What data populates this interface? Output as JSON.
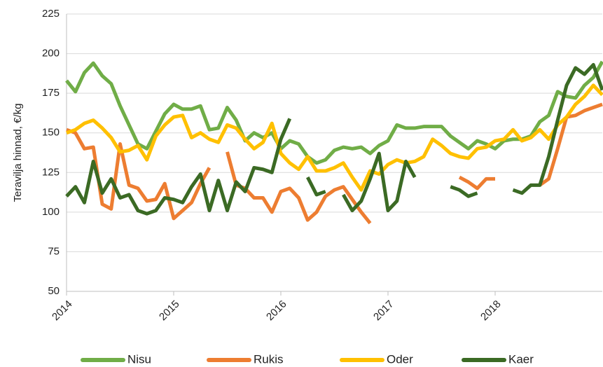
{
  "chart_data": {
    "type": "line",
    "y_label": "Teravilja hinnad, €/kg",
    "categories": [
      "2014",
      null,
      null,
      null,
      null,
      null,
      null,
      null,
      null,
      null,
      null,
      null,
      "2015",
      null,
      null,
      null,
      null,
      null,
      null,
      null,
      null,
      null,
      null,
      null,
      "2016",
      null,
      null,
      null,
      null,
      null,
      null,
      null,
      null,
      null,
      null,
      null,
      "2017",
      null,
      null,
      null,
      null,
      null,
      null,
      null,
      null,
      null,
      null,
      null,
      "2018",
      null,
      null,
      null,
      null,
      null,
      null,
      null,
      null,
      null,
      null,
      null,
      null
    ],
    "ylim": [
      50,
      225
    ],
    "yticks": [
      50,
      75,
      100,
      125,
      150,
      175,
      200,
      225
    ],
    "grid": true,
    "legend": "bottom",
    "series": [
      {
        "name": "Nisu",
        "color": "#70ad47",
        "values": [
          183,
          176,
          188,
          194,
          186,
          181,
          167,
          155,
          143,
          140,
          151,
          162,
          168,
          165,
          165,
          167,
          152,
          153,
          166,
          158,
          145,
          150,
          147,
          150,
          140,
          145,
          143,
          135,
          131,
          133,
          139,
          141,
          140,
          141,
          137,
          142,
          145,
          155,
          153,
          153,
          154,
          154,
          154,
          148,
          144,
          140,
          145,
          143,
          140,
          145,
          146,
          146,
          148,
          157,
          161,
          176,
          173,
          172,
          180,
          185,
          195
        ]
      },
      {
        "name": "Rukis",
        "color": "#ed7d31",
        "values": [
          152,
          150,
          140,
          141,
          105,
          102,
          143,
          117,
          115,
          107,
          108,
          118,
          96,
          101,
          106,
          118,
          128,
          null,
          138,
          117,
          115,
          109,
          109,
          100,
          113,
          115,
          109,
          95,
          100,
          110,
          114,
          116,
          108,
          100,
          93,
          null,
          null,
          null,
          null,
          null,
          null,
          null,
          null,
          null,
          122,
          119,
          115,
          121,
          121,
          null,
          null,
          null,
          null,
          117,
          121,
          140,
          160,
          161,
          164,
          166,
          168
        ]
      },
      {
        "name": "Oder",
        "color": "#ffc000",
        "values": [
          150,
          152,
          156,
          158,
          153,
          147,
          138,
          139,
          142,
          133,
          148,
          155,
          160,
          161,
          147,
          150,
          146,
          144,
          155,
          153,
          146,
          140,
          144,
          156,
          137,
          131,
          127,
          135,
          126,
          126,
          128,
          131,
          122,
          114,
          126,
          124,
          130,
          133,
          131,
          132,
          135,
          146,
          142,
          137,
          135,
          134,
          140,
          141,
          145,
          146,
          152,
          145,
          147,
          152,
          146,
          155,
          160,
          168,
          173,
          180,
          174
        ]
      },
      {
        "name": "Kaer",
        "color": "#3b6a24",
        "values": [
          110,
          116,
          106,
          132,
          112,
          121,
          109,
          111,
          101,
          99,
          101,
          109,
          108,
          106,
          116,
          124,
          101,
          120,
          101,
          119,
          113,
          128,
          127,
          125,
          146,
          159,
          null,
          122,
          111,
          113,
          null,
          111,
          101,
          107,
          121,
          137,
          101,
          107,
          132,
          122,
          null,
          null,
          null,
          116,
          114,
          110,
          112,
          null,
          null,
          null,
          114,
          112,
          117,
          117,
          135,
          158,
          180,
          191,
          187,
          193,
          177
        ]
      }
    ]
  }
}
